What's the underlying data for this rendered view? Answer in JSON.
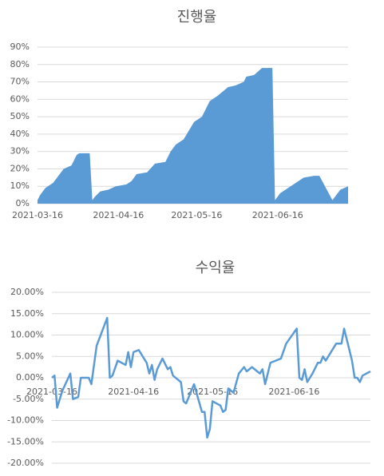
{
  "chart_data": [
    {
      "type": "area",
      "title": "진행율",
      "color": "#5b9bd5",
      "grid": true,
      "x": [
        "2021-03-16",
        "2021-03-17",
        "2021-03-19",
        "2021-03-22",
        "2021-03-26",
        "2021-03-29",
        "2021-03-31",
        "2021-04-01",
        "2021-04-05",
        "2021-04-06",
        "2021-04-07",
        "2021-04-09",
        "2021-04-12",
        "2021-04-15",
        "2021-04-19",
        "2021-04-21",
        "2021-04-23",
        "2021-04-27",
        "2021-04-30",
        "2021-05-04",
        "2021-05-06",
        "2021-05-08",
        "2021-05-11",
        "2021-05-15",
        "2021-05-18",
        "2021-05-21",
        "2021-05-24",
        "2021-05-28",
        "2021-05-31",
        "2021-06-03",
        "2021-06-04",
        "2021-06-07",
        "2021-06-10",
        "2021-06-14",
        "2021-06-15",
        "2021-06-17",
        "2021-06-20",
        "2021-06-23",
        "2021-06-26",
        "2021-06-30",
        "2021-07-02",
        "2021-07-07",
        "2021-07-10",
        "2021-07-13"
      ],
      "values": [
        2,
        5,
        9,
        12,
        20,
        22,
        28,
        29,
        29,
        2,
        4,
        7,
        8,
        10,
        11,
        13,
        17,
        18,
        23,
        24,
        30,
        34,
        37,
        47,
        50,
        59,
        62,
        67,
        68,
        70,
        73,
        74,
        78,
        78,
        2,
        6,
        9,
        12,
        15,
        16,
        16,
        2,
        8,
        10
      ],
      "xlim": [
        "2021-03-16",
        "2021-07-13"
      ],
      "xticks": [
        "2021-03-16",
        "2021-04-16",
        "2021-05-16",
        "2021-06-16"
      ],
      "ylim": [
        0,
        90
      ],
      "yticks": [
        {
          "value": 0,
          "label": "0%"
        },
        {
          "value": 10,
          "label": "10%"
        },
        {
          "value": 20,
          "label": "20%"
        },
        {
          "value": 30,
          "label": "30%"
        },
        {
          "value": 40,
          "label": "40%"
        },
        {
          "value": 50,
          "label": "50%"
        },
        {
          "value": 60,
          "label": "60%"
        },
        {
          "value": 70,
          "label": "70%"
        },
        {
          "value": 80,
          "label": "80%"
        },
        {
          "value": 90,
          "label": "90%"
        }
      ]
    },
    {
      "type": "line",
      "title": "수익율",
      "color": "#5b9bd5",
      "grid": true,
      "x": [
        "2021-03-16",
        "2021-03-17",
        "2021-03-18",
        "2021-03-20",
        "2021-03-23",
        "2021-03-24",
        "2021-03-26",
        "2021-03-27",
        "2021-03-30",
        "2021-03-31",
        "2021-04-02",
        "2021-04-06",
        "2021-04-07",
        "2021-04-08",
        "2021-04-10",
        "2021-04-13",
        "2021-04-14",
        "2021-04-15",
        "2021-04-16",
        "2021-04-18",
        "2021-04-21",
        "2021-04-22",
        "2021-04-23",
        "2021-04-24",
        "2021-04-25",
        "2021-04-27",
        "2021-04-29",
        "2021-04-30",
        "2021-05-01",
        "2021-05-04",
        "2021-05-05",
        "2021-05-06",
        "2021-05-09",
        "2021-05-12",
        "2021-05-13",
        "2021-05-14",
        "2021-05-15",
        "2021-05-16",
        "2021-05-19",
        "2021-05-20",
        "2021-05-21",
        "2021-05-22",
        "2021-05-24",
        "2021-05-26",
        "2021-05-28",
        "2021-05-29",
        "2021-05-31",
        "2021-06-03",
        "2021-06-04",
        "2021-06-05",
        "2021-06-07",
        "2021-06-09",
        "2021-06-11",
        "2021-06-13",
        "2021-06-17",
        "2021-06-18",
        "2021-06-19",
        "2021-06-20",
        "2021-06-21",
        "2021-06-23",
        "2021-06-25",
        "2021-06-26",
        "2021-06-27",
        "2021-06-28",
        "2021-07-01",
        "2021-07-02",
        "2021-07-04",
        "2021-07-05",
        "2021-07-08",
        "2021-07-09",
        "2021-07-10",
        "2021-07-11",
        "2021-07-12",
        "2021-07-15"
      ],
      "values": [
        0,
        0.5,
        -7,
        -3,
        1,
        -5,
        -4.5,
        0,
        0,
        -1.5,
        7.5,
        14,
        0,
        0.5,
        4,
        3,
        6,
        2.5,
        6,
        6.5,
        3.5,
        1,
        3,
        -0.5,
        2,
        4.5,
        2,
        2.5,
        0.5,
        -1,
        -5.5,
        -6,
        -1.5,
        -8,
        -8,
        -14,
        -12,
        -5.5,
        -6.5,
        -8,
        -7.5,
        -2.5,
        -3.5,
        1,
        2.5,
        1.5,
        2.5,
        1,
        2,
        -1.5,
        3.5,
        4,
        4.5,
        8,
        11.5,
        0,
        -0.5,
        2,
        -1,
        1,
        3.5,
        3.5,
        5,
        4,
        7,
        8,
        8,
        11.5,
        4,
        0,
        0,
        -1,
        0.5,
        1.5
      ],
      "xlim": [
        "2021-03-16",
        "2021-07-15"
      ],
      "xticks": [
        "2021-03-16",
        "2021-04-16",
        "2021-05-16",
        "2021-06-16"
      ],
      "ylim": [
        -20,
        20
      ],
      "yticks": [
        {
          "value": -20,
          "label": "-20.00%"
        },
        {
          "value": -15,
          "label": "-15.00%"
        },
        {
          "value": -10,
          "label": "-10.00%"
        },
        {
          "value": -5,
          "label": "-5.00%"
        },
        {
          "value": 0,
          "label": "0.00%"
        },
        {
          "value": 5,
          "label": "5.00%"
        },
        {
          "value": 10,
          "label": "10.00%"
        },
        {
          "value": 15,
          "label": "15.00%"
        },
        {
          "value": 20,
          "label": "20.00%"
        }
      ]
    }
  ]
}
